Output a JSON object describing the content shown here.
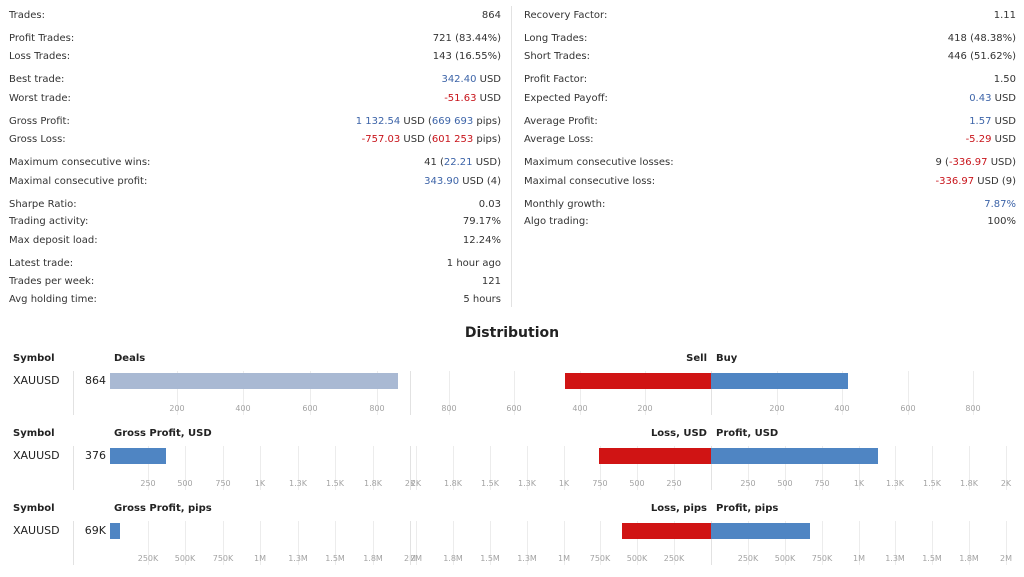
{
  "stats_left": [
    {
      "label": "Trades:",
      "value": [
        {
          "t": "864"
        }
      ]
    },
    {
      "label": "Profit Trades:",
      "value": [
        {
          "t": "721 (83.44%)"
        }
      ]
    },
    {
      "label": "Loss Trades:",
      "value": [
        {
          "t": "143 (16.55%)"
        }
      ]
    },
    {
      "label": "Best trade:",
      "value": [
        {
          "t": "342.40",
          "c": "blue"
        },
        {
          "t": " USD"
        }
      ]
    },
    {
      "label": "Worst trade:",
      "value": [
        {
          "t": "-51.63",
          "c": "red"
        },
        {
          "t": " USD"
        }
      ]
    },
    {
      "label": "Gross Profit:",
      "value": [
        {
          "t": "1 132.54",
          "c": "blue"
        },
        {
          "t": " USD ("
        },
        {
          "t": "669 693",
          "c": "blue"
        },
        {
          "t": " pips)"
        }
      ]
    },
    {
      "label": "Gross Loss:",
      "value": [
        {
          "t": "-757.03",
          "c": "red"
        },
        {
          "t": " USD ("
        },
        {
          "t": "601 253",
          "c": "red"
        },
        {
          "t": " pips)"
        }
      ]
    },
    {
      "label": "Maximum consecutive wins:",
      "value": [
        {
          "t": "41 ("
        },
        {
          "t": "22.21",
          "c": "blue"
        },
        {
          "t": " USD)"
        }
      ]
    },
    {
      "label": "Maximal consecutive profit:",
      "value": [
        {
          "t": "343.90",
          "c": "blue"
        },
        {
          "t": " USD (4)"
        }
      ]
    },
    {
      "label": "Sharpe Ratio:",
      "value": [
        {
          "t": "0.03"
        }
      ]
    },
    {
      "label": "Trading activity:",
      "value": [
        {
          "t": "79.17%"
        }
      ]
    },
    {
      "label": "Max deposit load:",
      "value": [
        {
          "t": "12.24%"
        }
      ]
    },
    {
      "label": "Latest trade:",
      "value": [
        {
          "t": "1 hour ago"
        }
      ]
    },
    {
      "label": "Trades per week:",
      "value": [
        {
          "t": "121"
        }
      ]
    },
    {
      "label": "Avg holding time:",
      "value": [
        {
          "t": "5 hours"
        }
      ]
    }
  ],
  "stats_right": [
    {
      "label": "Recovery Factor:",
      "value": [
        {
          "t": "1.11"
        }
      ]
    },
    {
      "label": "Long Trades:",
      "value": [
        {
          "t": "418 (48.38%)"
        }
      ]
    },
    {
      "label": "Short Trades:",
      "value": [
        {
          "t": "446 (51.62%)"
        }
      ]
    },
    {
      "label": "Profit Factor:",
      "value": [
        {
          "t": "1.50"
        }
      ]
    },
    {
      "label": "Expected Payoff:",
      "value": [
        {
          "t": "0.43",
          "c": "blue"
        },
        {
          "t": " USD"
        }
      ]
    },
    {
      "label": "Average Profit:",
      "value": [
        {
          "t": "1.57",
          "c": "blue"
        },
        {
          "t": " USD"
        }
      ]
    },
    {
      "label": "Average Loss:",
      "value": [
        {
          "t": "-5.29",
          "c": "red"
        },
        {
          "t": " USD"
        }
      ]
    },
    {
      "label": "Maximum consecutive losses:",
      "value": [
        {
          "t": "9 ("
        },
        {
          "t": "-336.97",
          "c": "red"
        },
        {
          "t": " USD)"
        }
      ]
    },
    {
      "label": "Maximal consecutive loss:",
      "value": [
        {
          "t": "-336.97",
          "c": "red"
        },
        {
          "t": " USD (9)"
        }
      ]
    },
    {
      "label": "Monthly growth:",
      "value": [
        {
          "t": "7.87%",
          "c": "blue"
        }
      ]
    },
    {
      "label": "Algo trading:",
      "value": [
        {
          "t": "100%"
        }
      ]
    }
  ],
  "distribution_title": "Distribution",
  "colors": {
    "deals": "#a9b9d3",
    "sell_loss": "#d01414",
    "buy_profit": "#4f85c3",
    "positive_text": "#3d64a8",
    "negative_text": "#c8141b"
  },
  "chart_data": [
    {
      "type": "bar",
      "symbol_header": "Symbol",
      "symbol": "XAUUSD",
      "total_label": "864",
      "left": {
        "header": "Deals",
        "value": 864,
        "max": 900,
        "ticks": [
          200,
          400,
          600,
          800
        ],
        "tick_labels": [
          "200",
          "400",
          "600",
          "800"
        ]
      },
      "neg": {
        "header": "Sell",
        "value": 446,
        "max": 900,
        "ticks": [
          800,
          600,
          400,
          200
        ],
        "tick_labels": [
          "800",
          "600",
          "400",
          "200"
        ]
      },
      "pos": {
        "header": "Buy",
        "value": 418,
        "max": 900,
        "ticks": [
          200,
          400,
          600,
          800
        ],
        "tick_labels": [
          "200",
          "400",
          "600",
          "800"
        ]
      }
    },
    {
      "type": "bar",
      "symbol_header": "Symbol",
      "symbol": "XAUUSD",
      "total_label": "376",
      "left": {
        "header": "Gross Profit, USD",
        "value": 376,
        "max": 2000,
        "ticks": [
          250,
          500,
          750,
          1000,
          1250,
          1500,
          1750,
          2000
        ],
        "tick_labels": [
          "250",
          "500",
          "750",
          "1K",
          "1.3K",
          "1.5K",
          "1.8K",
          "2K"
        ]
      },
      "neg": {
        "header": "Loss, USD",
        "value": 757,
        "max": 2000,
        "ticks": [
          2000,
          1750,
          1500,
          1250,
          1000,
          750,
          500,
          250
        ],
        "tick_labels": [
          "2K",
          "1.8K",
          "1.5K",
          "1.3K",
          "1K",
          "750",
          "500",
          "250"
        ]
      },
      "pos": {
        "header": "Profit, USD",
        "value": 1133,
        "max": 2000,
        "ticks": [
          250,
          500,
          750,
          1000,
          1250,
          1500,
          1750,
          2000
        ],
        "tick_labels": [
          "250",
          "500",
          "750",
          "1K",
          "1.3K",
          "1.5K",
          "1.8K",
          "2K"
        ]
      }
    },
    {
      "type": "bar",
      "symbol_header": "Symbol",
      "symbol": "XAUUSD",
      "total_label": "69K",
      "left": {
        "header": "Gross Profit, pips",
        "value": 69000,
        "max": 2000000,
        "ticks": [
          250000,
          500000,
          750000,
          1000000,
          1250000,
          1500000,
          1750000,
          2000000
        ],
        "tick_labels": [
          "250K",
          "500K",
          "750K",
          "1M",
          "1.3M",
          "1.5M",
          "1.8M",
          "2M"
        ]
      },
      "neg": {
        "header": "Loss, pips",
        "value": 601253,
        "max": 2000000,
        "ticks": [
          2000000,
          1750000,
          1500000,
          1250000,
          1000000,
          750000,
          500000,
          250000
        ],
        "tick_labels": [
          "2M",
          "1.8M",
          "1.5M",
          "1.3M",
          "1M",
          "750K",
          "500K",
          "250K"
        ]
      },
      "pos": {
        "header": "Profit, pips",
        "value": 669693,
        "max": 2000000,
        "ticks": [
          250000,
          500000,
          750000,
          1000000,
          1250000,
          1500000,
          1750000,
          2000000
        ],
        "tick_labels": [
          "250K",
          "500K",
          "750K",
          "1M",
          "1.3M",
          "1.5M",
          "1.8M",
          "2M"
        ]
      }
    }
  ]
}
